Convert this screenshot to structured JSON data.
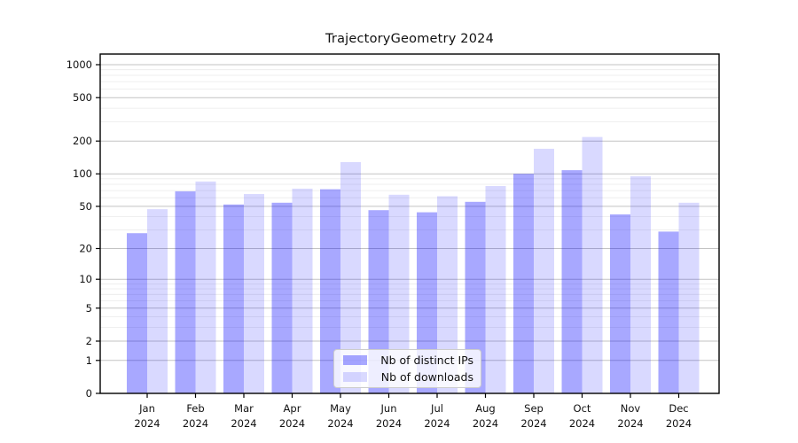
{
  "title": "TrajectoryGeometry 2024",
  "legend": {
    "position": "lower center",
    "items": [
      {
        "label": "Nb of distinct IPs",
        "color": "#0000ff",
        "alpha": 0.34
      },
      {
        "label": "Nb of downloads",
        "color": "#0000ff",
        "alpha": 0.15
      }
    ]
  },
  "colors": {
    "background": "#ffffff",
    "bar_base": "#0000ff",
    "bar_ips_composited": "#abaff8",
    "bar_downloads_composited": "#dcdcfa",
    "grid_major": "#c3c3c3",
    "grid_minor": "#eaeaea",
    "spine": "#000000",
    "text": "#111111"
  },
  "chart_data": {
    "type": "bar",
    "title": "TrajectoryGeometry 2024",
    "xlabel": "",
    "ylabel": "",
    "scale": "symlog (y ~ log(1+v))",
    "grid": true,
    "legend_position": "lower center",
    "categories": [
      "Jan",
      "Feb",
      "Mar",
      "Apr",
      "May",
      "Jun",
      "Jul",
      "Aug",
      "Sep",
      "Oct",
      "Nov",
      "Dec"
    ],
    "year_label": "2024",
    "series": [
      {
        "name": "Nb of distinct IPs",
        "values": [
          28,
          69,
          52,
          54,
          72,
          46,
          44,
          55,
          100,
          108,
          42,
          29
        ]
      },
      {
        "name": "Nb of downloads",
        "values": [
          47,
          85,
          65,
          73,
          128,
          64,
          62,
          77,
          170,
          218,
          95,
          54
        ]
      }
    ],
    "y_ticks": [
      0,
      1,
      2,
      5,
      10,
      20,
      50,
      100,
      200,
      500,
      1000
    ],
    "y_minor_ticks": [
      3,
      4,
      6,
      7,
      8,
      9,
      30,
      40,
      60,
      70,
      80,
      90,
      300,
      400,
      600,
      700,
      800,
      900
    ],
    "ylim": [
      0,
      1250
    ]
  }
}
